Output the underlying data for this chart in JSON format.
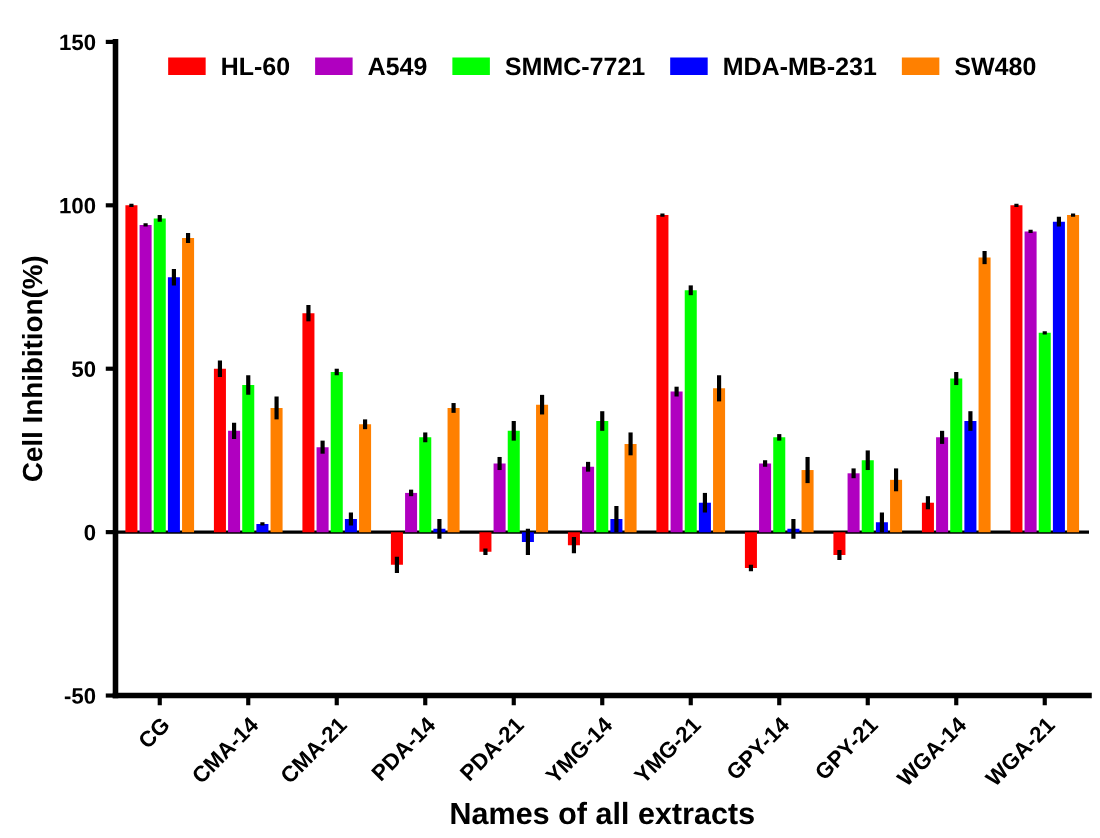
{
  "chart_data": {
    "type": "bar",
    "xlabel": "Names of all extracts",
    "ylabel": "Cell Inhibition(%)",
    "categories": [
      "CG",
      "CMA-14",
      "CMA-21",
      "PDA-14",
      "PDA-21",
      "YMG-14",
      "YMG-21",
      "GPY-14",
      "GPY-21",
      "WGA-14",
      "WGA-21"
    ],
    "series": [
      {
        "name": "HL-60",
        "color": "#ff0000",
        "values": [
          100,
          50,
          67,
          -10,
          -6,
          -4,
          97,
          -11,
          -7,
          9,
          100
        ],
        "errors": [
          0.5,
          2.5,
          2.5,
          2.5,
          1,
          2.5,
          0.5,
          1,
          1.5,
          2,
          0.5
        ]
      },
      {
        "name": "A549",
        "color": "#b000c0",
        "values": [
          94,
          31,
          26,
          12,
          21,
          20,
          43,
          21,
          18,
          29,
          92
        ],
        "errors": [
          0.5,
          2.5,
          2,
          1,
          2,
          1.5,
          1.5,
          1,
          1.5,
          2,
          0.5
        ]
      },
      {
        "name": "SMMC-7721",
        "color": "#00ff00",
        "values": [
          96,
          45,
          49,
          29,
          31,
          34,
          74,
          29,
          22,
          47,
          61
        ],
        "errors": [
          1,
          3,
          1,
          1.5,
          3,
          3,
          1.5,
          1,
          3,
          2,
          0.5
        ]
      },
      {
        "name": "MDA-MB-231",
        "color": "#0000ff",
        "values": [
          78,
          2.5,
          4,
          1,
          -3,
          4,
          9,
          1,
          3,
          34,
          95
        ],
        "errors": [
          2.5,
          0.5,
          2,
          3,
          4,
          4,
          3,
          3,
          3,
          3,
          1.5
        ]
      },
      {
        "name": "SW480",
        "color": "#ff8000",
        "values": [
          90,
          38,
          33,
          38,
          39,
          27,
          44,
          19,
          16,
          84,
          97
        ],
        "errors": [
          1.5,
          3.5,
          1.5,
          1.5,
          3,
          3.5,
          4,
          4,
          3.5,
          2,
          0.5
        ]
      }
    ],
    "ylim": [
      -50,
      150
    ],
    "yticks": [
      -50,
      0,
      50,
      100,
      150
    ],
    "ref_lines": [
      {
        "axis": "y",
        "value": 0
      }
    ],
    "legend": "top",
    "grid": false
  }
}
